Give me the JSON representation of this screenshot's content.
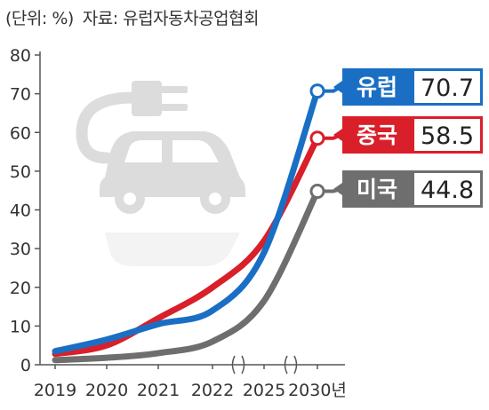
{
  "header": {
    "unit": "(단위: %)",
    "source": "자료: 유럽자동차공업협회"
  },
  "chart_data": {
    "type": "line",
    "title": "",
    "xlabel": "",
    "ylabel": "",
    "unit_suffix": "년",
    "x": [
      "2019",
      "2020",
      "2021",
      "2022",
      "2025",
      "2030"
    ],
    "ylim": [
      0,
      80
    ],
    "yticks": [
      0,
      10,
      20,
      30,
      40,
      50,
      60,
      70,
      80
    ],
    "axis_breaks_after": [
      "2022",
      "2025"
    ],
    "grid": false,
    "background_icon": "electric-car-plug-icon",
    "series": [
      {
        "name": "유럽",
        "color": "#1a6fc4",
        "values": [
          3.5,
          6.5,
          10.5,
          14,
          29,
          70.7
        ],
        "end_label": "70.7"
      },
      {
        "name": "중국",
        "color": "#d91f2a",
        "values": [
          2.8,
          5,
          12,
          20,
          32,
          58.5
        ],
        "end_label": "58.5"
      },
      {
        "name": "미국",
        "color": "#6e6e6e",
        "values": [
          1.2,
          1.8,
          3,
          6,
          16.5,
          44.8
        ],
        "end_label": "44.8"
      }
    ]
  }
}
